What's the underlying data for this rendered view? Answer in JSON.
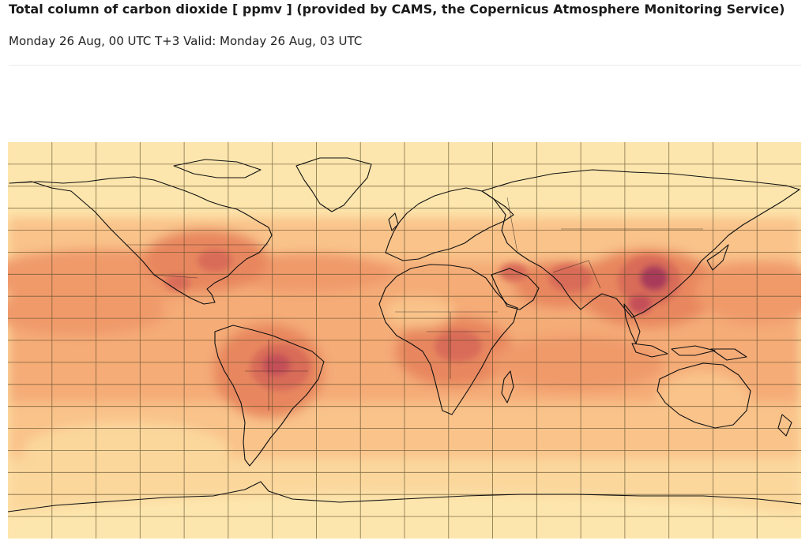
{
  "title": "Total column of carbon dioxide [ ppmv ] (provided by CAMS, the Copernicus Atmosphere Monitoring Service)",
  "subtitle": "Monday 26 Aug, 00 UTC T+3 Valid: Monday 26 Aug, 03 UTC",
  "map": {
    "projection": "equirectangular",
    "extent": {
      "lon": [
        -180,
        180
      ],
      "lat": [
        -90,
        90
      ]
    },
    "graticule_step_degrees": 20,
    "palette": [
      "#fde6ad",
      "#fbd79c",
      "#f9c38a",
      "#f5ac77",
      "#f09a6a",
      "#e8875f",
      "#d96c59",
      "#c45058",
      "#a83a5a",
      "#8a2b5a"
    ],
    "grid_color": "#5a4a2a",
    "coastline_color": "#111111"
  }
}
